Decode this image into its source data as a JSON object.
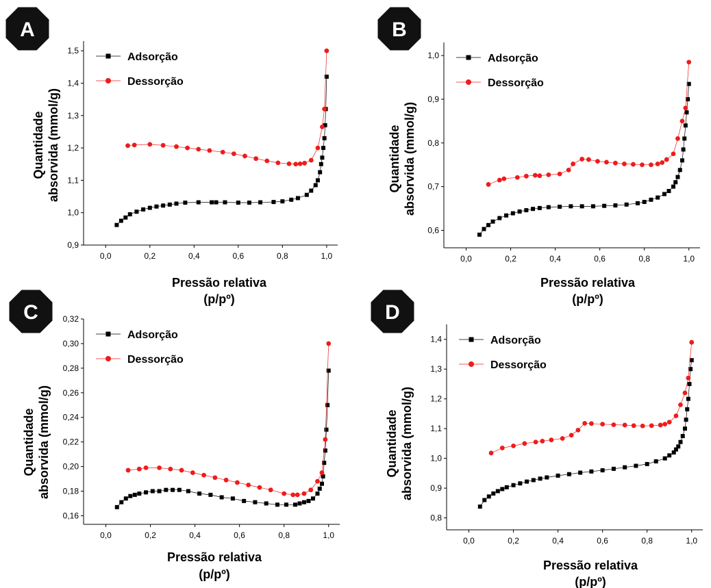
{
  "colors": {
    "adsorcao": "#000000",
    "dessorcao": "#ee1c1c",
    "badge": "#111111"
  },
  "chart_data": [
    {
      "panel": "A",
      "type": "scatter",
      "xlabel": "Pressão relativa",
      "xlabel2": "(p/pº)",
      "ylabel": "Quantidade",
      "ylabel2": "absorvida (mmol/g)",
      "xlim": [
        -0.1,
        1.05
      ],
      "ylim": [
        0.9,
        1.53
      ],
      "xticks": [
        "0,0",
        "0,2",
        "0,4",
        "0,6",
        "0,8",
        "1,0"
      ],
      "xtick_values": [
        0,
        0.2,
        0.4,
        0.6,
        0.8,
        1.0
      ],
      "yticks": [
        "0,9",
        "1,0",
        "1,1",
        "1,2",
        "1,3",
        "1,4",
        "1,5"
      ],
      "ytick_values": [
        0.9,
        1.0,
        1.1,
        1.2,
        1.3,
        1.4,
        1.5
      ],
      "legend_position": "top-left",
      "series": [
        {
          "name": "Adsorção",
          "marker": "square",
          "x": [
            0.05,
            0.07,
            0.09,
            0.11,
            0.14,
            0.17,
            0.2,
            0.23,
            0.26,
            0.29,
            0.32,
            0.36,
            0.42,
            0.48,
            0.5,
            0.54,
            0.6,
            0.65,
            0.7,
            0.76,
            0.8,
            0.84,
            0.87,
            0.91,
            0.93,
            0.95,
            0.96,
            0.97,
            0.975,
            0.98,
            0.985,
            0.99,
            0.993,
            0.996,
            1.0
          ],
          "y": [
            0.962,
            0.975,
            0.985,
            0.995,
            1.003,
            1.01,
            1.015,
            1.019,
            1.022,
            1.025,
            1.028,
            1.031,
            1.032,
            1.032,
            1.032,
            1.032,
            1.031,
            1.031,
            1.032,
            1.033,
            1.035,
            1.04,
            1.045,
            1.055,
            1.068,
            1.085,
            1.1,
            1.125,
            1.15,
            1.17,
            1.2,
            1.23,
            1.27,
            1.32,
            1.42
          ]
        },
        {
          "name": "Dessorção",
          "marker": "circle",
          "x": [
            0.1,
            0.13,
            0.2,
            0.26,
            0.32,
            0.37,
            0.42,
            0.47,
            0.53,
            0.58,
            0.63,
            0.68,
            0.73,
            0.78,
            0.83,
            0.86,
            0.88,
            0.9,
            0.93,
            0.96,
            0.98,
            0.99,
            1.0
          ],
          "y": [
            1.207,
            1.209,
            1.211,
            1.208,
            1.204,
            1.2,
            1.196,
            1.192,
            1.187,
            1.182,
            1.175,
            1.167,
            1.16,
            1.154,
            1.151,
            1.15,
            1.151,
            1.153,
            1.162,
            1.2,
            1.265,
            1.32,
            1.5
          ]
        }
      ]
    },
    {
      "panel": "B",
      "type": "scatter",
      "xlabel": "Pressão relativa",
      "xlabel2": "(p/pº)",
      "ylabel": "Quantidade",
      "ylabel2": "absorvida (mmol/g)",
      "xlim": [
        -0.1,
        1.05
      ],
      "ylim": [
        0.56,
        1.03
      ],
      "xticks": [
        "0,0",
        "0,2",
        "0,4",
        "0,6",
        "0,8",
        "1,0"
      ],
      "xtick_values": [
        0,
        0.2,
        0.4,
        0.6,
        0.8,
        1.0
      ],
      "yticks": [
        "0,6",
        "0,7",
        "0,8",
        "0,9",
        "1,0"
      ],
      "ytick_values": [
        0.6,
        0.7,
        0.8,
        0.9,
        1.0
      ],
      "legend_position": "top-left",
      "series": [
        {
          "name": "Adsorção",
          "marker": "square",
          "x": [
            0.06,
            0.08,
            0.1,
            0.12,
            0.15,
            0.18,
            0.21,
            0.24,
            0.27,
            0.3,
            0.33,
            0.37,
            0.42,
            0.47,
            0.52,
            0.57,
            0.62,
            0.67,
            0.72,
            0.77,
            0.8,
            0.83,
            0.86,
            0.89,
            0.91,
            0.93,
            0.94,
            0.95,
            0.96,
            0.97,
            0.975,
            0.98,
            0.985,
            0.99,
            0.995,
            1.0
          ],
          "y": [
            0.59,
            0.603,
            0.612,
            0.62,
            0.628,
            0.634,
            0.639,
            0.643,
            0.646,
            0.649,
            0.651,
            0.653,
            0.654,
            0.655,
            0.655,
            0.655,
            0.656,
            0.657,
            0.659,
            0.662,
            0.665,
            0.67,
            0.675,
            0.683,
            0.69,
            0.7,
            0.71,
            0.722,
            0.738,
            0.76,
            0.785,
            0.81,
            0.84,
            0.87,
            0.9,
            0.935
          ]
        },
        {
          "name": "Dessorção",
          "marker": "circle",
          "x": [
            0.1,
            0.15,
            0.17,
            0.23,
            0.27,
            0.31,
            0.33,
            0.37,
            0.42,
            0.46,
            0.48,
            0.52,
            0.55,
            0.59,
            0.63,
            0.67,
            0.71,
            0.75,
            0.79,
            0.83,
            0.86,
            0.88,
            0.9,
            0.93,
            0.95,
            0.97,
            0.985,
            1.0
          ],
          "y": [
            0.705,
            0.715,
            0.718,
            0.721,
            0.724,
            0.726,
            0.725,
            0.727,
            0.729,
            0.738,
            0.752,
            0.763,
            0.762,
            0.758,
            0.756,
            0.754,
            0.752,
            0.751,
            0.75,
            0.75,
            0.752,
            0.755,
            0.762,
            0.775,
            0.81,
            0.85,
            0.88,
            0.985
          ]
        }
      ]
    },
    {
      "panel": "C",
      "type": "scatter",
      "xlabel": "Pressão relativa",
      "xlabel2": "(p/pº)",
      "ylabel": "Quantidade",
      "ylabel2": "absorvida (mmol/g)",
      "xlim": [
        -0.1,
        1.05
      ],
      "ylim": [
        0.153,
        0.32
      ],
      "xticks": [
        "0,0",
        "0,2",
        "0,4",
        "0,6",
        "0,8",
        "1,0"
      ],
      "xtick_values": [
        0,
        0.2,
        0.4,
        0.6,
        0.8,
        1.0
      ],
      "yticks": [
        "0,16",
        "0,18",
        "0,20",
        "0,22",
        "0,24",
        "0,26",
        "0,28",
        "0,30",
        "0,32"
      ],
      "ytick_values": [
        0.16,
        0.18,
        0.2,
        0.22,
        0.24,
        0.26,
        0.28,
        0.3,
        0.32
      ],
      "legend_position": "top-left",
      "series": [
        {
          "name": "Adsorção",
          "marker": "square",
          "x": [
            0.05,
            0.07,
            0.09,
            0.11,
            0.13,
            0.15,
            0.18,
            0.21,
            0.24,
            0.27,
            0.3,
            0.33,
            0.37,
            0.42,
            0.47,
            0.52,
            0.57,
            0.62,
            0.67,
            0.72,
            0.77,
            0.81,
            0.85,
            0.87,
            0.89,
            0.91,
            0.93,
            0.95,
            0.96,
            0.97,
            0.975,
            0.98,
            0.985,
            0.99,
            0.995,
            1.0
          ],
          "y": [
            0.167,
            0.171,
            0.174,
            0.176,
            0.177,
            0.178,
            0.179,
            0.18,
            0.18,
            0.181,
            0.181,
            0.181,
            0.18,
            0.178,
            0.177,
            0.175,
            0.174,
            0.172,
            0.171,
            0.17,
            0.169,
            0.169,
            0.169,
            0.17,
            0.171,
            0.172,
            0.174,
            0.178,
            0.182,
            0.186,
            0.192,
            0.203,
            0.213,
            0.23,
            0.25,
            0.278
          ]
        },
        {
          "name": "Dessorção",
          "marker": "circle",
          "x": [
            0.1,
            0.15,
            0.18,
            0.24,
            0.29,
            0.34,
            0.39,
            0.44,
            0.49,
            0.54,
            0.59,
            0.64,
            0.69,
            0.74,
            0.8,
            0.84,
            0.86,
            0.89,
            0.92,
            0.95,
            0.97,
            0.985,
            1.0
          ],
          "y": [
            0.197,
            0.198,
            0.199,
            0.199,
            0.198,
            0.197,
            0.195,
            0.193,
            0.191,
            0.189,
            0.187,
            0.185,
            0.183,
            0.181,
            0.178,
            0.177,
            0.177,
            0.178,
            0.181,
            0.188,
            0.195,
            0.222,
            0.3
          ]
        }
      ]
    },
    {
      "panel": "D",
      "type": "scatter",
      "xlabel": "Pressão relativa",
      "xlabel2": "(p/pº)",
      "ylabel": "Quantidade",
      "ylabel2": "absorvida (mmol/g)",
      "xlim": [
        -0.1,
        1.05
      ],
      "ylim": [
        0.76,
        1.45
      ],
      "xticks": [
        "0,0",
        "0,2",
        "0,4",
        "0,6",
        "0,8",
        "1,0"
      ],
      "xtick_values": [
        0,
        0.2,
        0.4,
        0.6,
        0.8,
        1.0
      ],
      "yticks": [
        "0,8",
        "0,9",
        "1,0",
        "1,1",
        "1,2",
        "1,3",
        "1,4"
      ],
      "ytick_values": [
        0.8,
        0.9,
        1.0,
        1.1,
        1.2,
        1.3,
        1.4
      ],
      "legend_position": "top-left",
      "series": [
        {
          "name": "Adsorção",
          "marker": "square",
          "x": [
            0.05,
            0.07,
            0.09,
            0.11,
            0.13,
            0.15,
            0.17,
            0.2,
            0.23,
            0.26,
            0.29,
            0.32,
            0.35,
            0.4,
            0.45,
            0.5,
            0.55,
            0.6,
            0.65,
            0.7,
            0.75,
            0.8,
            0.84,
            0.88,
            0.9,
            0.92,
            0.93,
            0.94,
            0.95,
            0.96,
            0.97,
            0.975,
            0.98,
            0.985,
            0.99,
            0.995,
            1.0
          ],
          "y": [
            0.838,
            0.86,
            0.872,
            0.882,
            0.89,
            0.897,
            0.903,
            0.91,
            0.916,
            0.922,
            0.927,
            0.932,
            0.936,
            0.942,
            0.947,
            0.952,
            0.956,
            0.96,
            0.965,
            0.97,
            0.975,
            0.981,
            0.99,
            1.0,
            1.01,
            1.02,
            1.03,
            1.04,
            1.055,
            1.075,
            1.1,
            1.13,
            1.165,
            1.2,
            1.25,
            1.3,
            1.33
          ]
        },
        {
          "name": "Dessorção",
          "marker": "circle",
          "x": [
            0.1,
            0.15,
            0.2,
            0.25,
            0.3,
            0.33,
            0.37,
            0.42,
            0.46,
            0.49,
            0.52,
            0.55,
            0.6,
            0.65,
            0.7,
            0.74,
            0.78,
            0.82,
            0.86,
            0.88,
            0.9,
            0.93,
            0.95,
            0.97,
            0.985,
            1.0
          ],
          "y": [
            1.018,
            1.035,
            1.042,
            1.05,
            1.055,
            1.058,
            1.062,
            1.067,
            1.078,
            1.095,
            1.118,
            1.117,
            1.115,
            1.113,
            1.112,
            1.11,
            1.109,
            1.11,
            1.112,
            1.115,
            1.122,
            1.143,
            1.18,
            1.22,
            1.27,
            1.39
          ]
        }
      ]
    }
  ]
}
